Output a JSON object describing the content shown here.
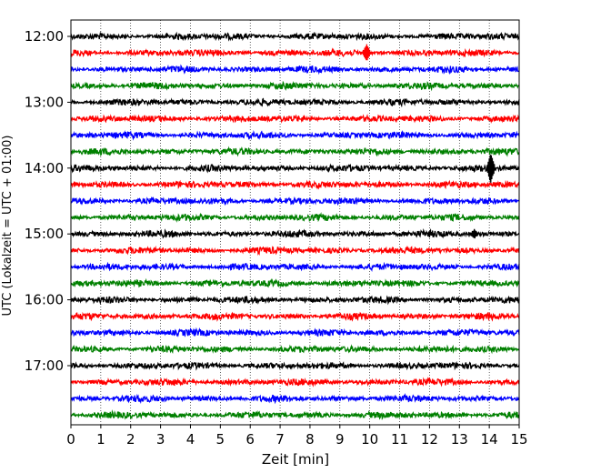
{
  "chart_data": {
    "type": "line",
    "subtype": "helicorder",
    "xlabel": "Zeit  [min]",
    "ylabel": "UTC (Lokalzeit = UTC + 01:00)",
    "xlim": [
      0,
      15
    ],
    "x_ticks": [
      "0",
      "1",
      "2",
      "3",
      "4",
      "5",
      "6",
      "7",
      "8",
      "9",
      "10",
      "11",
      "12",
      "13",
      "14",
      "15"
    ],
    "y_tick_labels": [
      "12:00",
      "13:00",
      "14:00",
      "15:00",
      "16:00",
      "17:00"
    ],
    "start_time": "12:00",
    "end_time": "18:00",
    "minutes_per_trace": 15,
    "trace_count": 24,
    "colors": [
      "#000000",
      "#ff0000",
      "#0000ff",
      "#008000"
    ],
    "vertical_gridlines": "dotted",
    "events": [
      {
        "trace_start": "12:15",
        "minute": 9.9,
        "amplitude": "small spike"
      },
      {
        "trace_start": "14:00",
        "minute": 14.05,
        "amplitude": "large spike"
      },
      {
        "trace_start": "15:00",
        "minute": 13.5,
        "amplitude": "small burst"
      }
    ]
  }
}
